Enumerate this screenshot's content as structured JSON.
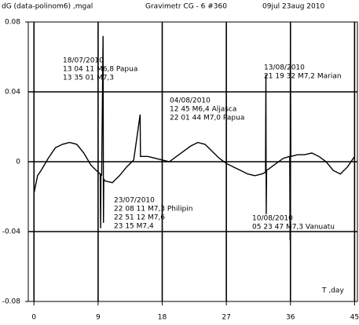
{
  "chart_data": {
    "type": "line",
    "header": [
      "dG (data-polinom6) ,mgal",
      "Gravimetr CG - 6  #360",
      "09jul    23aug 2010"
    ],
    "x_label": "T ,day",
    "x": [
      0,
      0.5,
      1,
      2,
      3,
      4,
      5,
      6,
      7,
      8,
      9,
      9.3,
      9.35,
      9.4,
      9.5,
      9.7,
      9.75,
      9.8,
      10,
      11,
      12,
      13,
      14,
      14.9,
      14.95,
      15,
      16,
      17,
      18,
      19,
      20,
      21,
      22,
      23,
      24,
      25,
      26,
      27,
      28,
      29,
      30,
      31,
      32,
      32.5,
      32.55,
      32.6,
      32.65,
      33,
      34,
      35,
      35.9,
      35.95,
      36,
      36.05,
      37,
      38,
      39,
      40,
      41,
      42,
      43,
      44,
      45
    ],
    "series": [
      {
        "name": "dG",
        "color": "#000000",
        "values": [
          -0.018,
          -0.008,
          -0.005,
          0.002,
          0.008,
          0.01,
          0.011,
          0.01,
          0.005,
          -0.002,
          -0.006,
          -0.007,
          -0.038,
          -0.007,
          -0.008,
          0.072,
          -0.035,
          -0.01,
          -0.011,
          -0.012,
          -0.008,
          -0.003,
          0.001,
          0.027,
          0.003,
          0.003,
          0.003,
          0.002,
          0.001,
          0.0,
          0.003,
          0.006,
          0.009,
          0.011,
          0.01,
          0.006,
          0.002,
          -0.001,
          -0.003,
          -0.005,
          -0.007,
          -0.008,
          -0.007,
          -0.006,
          0.05,
          -0.03,
          -0.005,
          -0.004,
          -0.001,
          0.002,
          0.003,
          -0.045,
          0.068,
          0.003,
          0.004,
          0.004,
          0.005,
          0.003,
          0.0,
          -0.005,
          -0.007,
          -0.003,
          0.003
        ]
      }
    ],
    "xlim": [
      -0.8,
      45.4
    ],
    "xticks": [
      0,
      9,
      18,
      27,
      36,
      45
    ],
    "ylim": [
      -0.08,
      0.08
    ],
    "yticks": [
      -0.08,
      -0.04,
      0,
      0.04,
      0.08
    ],
    "grid": true,
    "annotations": [
      [
        "18/07/2010",
        "13 04 11 M6,8 Papua",
        "13 35 01 M7,3"
      ],
      [
        "04/08/2010",
        "12 45        M6,4 Aljasca",
        "22 01 44 M7,0 Papua"
      ],
      [
        "13/08/2010",
        "21 19 32 M7,2 Marian"
      ],
      [
        "23/07/2010",
        "22 08 11 M7,3 Philipin",
        "22 51 12 M7,6",
        "23 15        M7,4"
      ],
      [
        "10/08/2010",
        "05 23 47 M7,3 Vanuatu"
      ]
    ]
  }
}
